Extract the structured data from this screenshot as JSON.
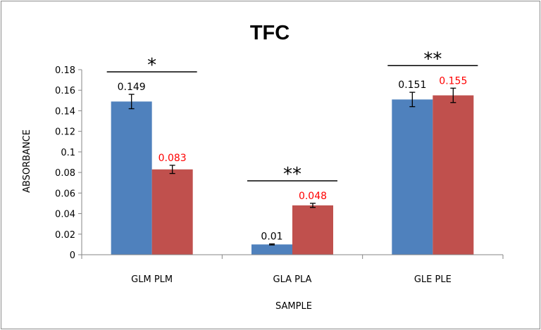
{
  "chart_data": {
    "type": "bar",
    "title": "TFC",
    "xlabel": "SAMPLE",
    "ylabel": "ABSORBANCE",
    "ylim": [
      0,
      0.18
    ],
    "yticks": [
      "0",
      "0.02",
      "0.04",
      "0.06",
      "0.08",
      "0.1",
      "0.12",
      "0.14",
      "0.16",
      "0.18"
    ],
    "categories": [
      "GLM PLM",
      "GLA PLA",
      "GLE PLE"
    ],
    "series": [
      {
        "color": "#4f81bd",
        "label_color": "#000000",
        "values": [
          0.149,
          0.01,
          0.151
        ],
        "data_labels": [
          "0.149",
          "0.01",
          "0.151"
        ],
        "errors": [
          0.007,
          0.0005,
          0.007
        ]
      },
      {
        "color": "#c0504d",
        "label_color": "#ff0000",
        "values": [
          0.083,
          0.048,
          0.155
        ],
        "data_labels": [
          "0.083",
          "0.048",
          "0.155"
        ],
        "errors": [
          0.004,
          0.002,
          0.007
        ]
      }
    ],
    "significance": [
      "*",
      "**",
      "**"
    ],
    "grid": false,
    "legend": "none"
  }
}
